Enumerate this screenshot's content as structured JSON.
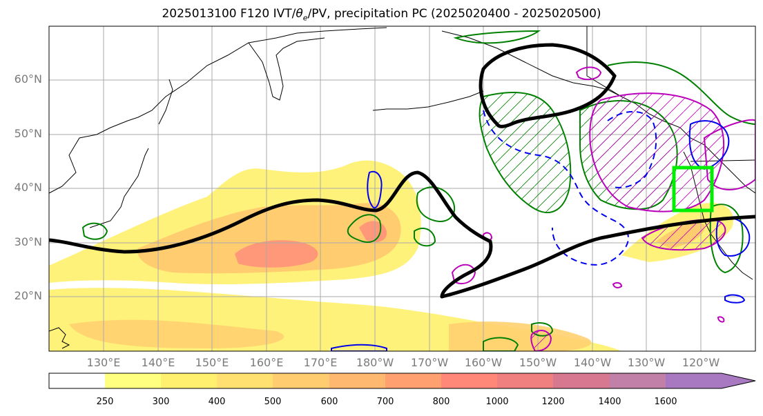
{
  "title": "2025013100 F120 IVT/θe/PV, precipitation PC (2025020400 - 2025020500)",
  "title_parts": {
    "prefix": "2025013100 F120 IVT/",
    "theta": "θ",
    "theta_sub": "e",
    "suffix": "/PV, precipitation PC (2025020400 - 2025020500)"
  },
  "lat_labels": [
    "60°N",
    "50°N",
    "40°N",
    "30°N",
    "20°N"
  ],
  "lon_labels": [
    "130°E",
    "140°E",
    "150°E",
    "160°E",
    "170°E",
    "180°W",
    "170°W",
    "160°W",
    "150°W",
    "140°W",
    "130°W",
    "120°W"
  ],
  "colorbar": {
    "labels": [
      "250",
      "300",
      "400",
      "500",
      "600",
      "700",
      "800",
      "1000",
      "1200",
      "1400",
      "1600"
    ],
    "colors": [
      "#ffffff",
      "#ffff80",
      "#fff070",
      "#ffe070",
      "#ffcc70",
      "#ffb870",
      "#ffa070",
      "#ff8878",
      "#f08080",
      "#d87890",
      "#c080a8",
      "#a878c0"
    ]
  },
  "colors": {
    "ivt_low": "#fff27a",
    "ivt_mid": "#ffc070",
    "ivt_high": "#ff9878",
    "theta_contour": "#000000",
    "pv_contour": "#0000ff",
    "precip_green": "#008000",
    "precip_magenta": "#bb00bb",
    "box": "#00ff00",
    "grid": "#aaaaaa",
    "coast": "#000000"
  },
  "map": {
    "lon_range": [
      "120°E",
      "110°W"
    ],
    "lat_range": [
      "10°N",
      "70°N"
    ]
  }
}
